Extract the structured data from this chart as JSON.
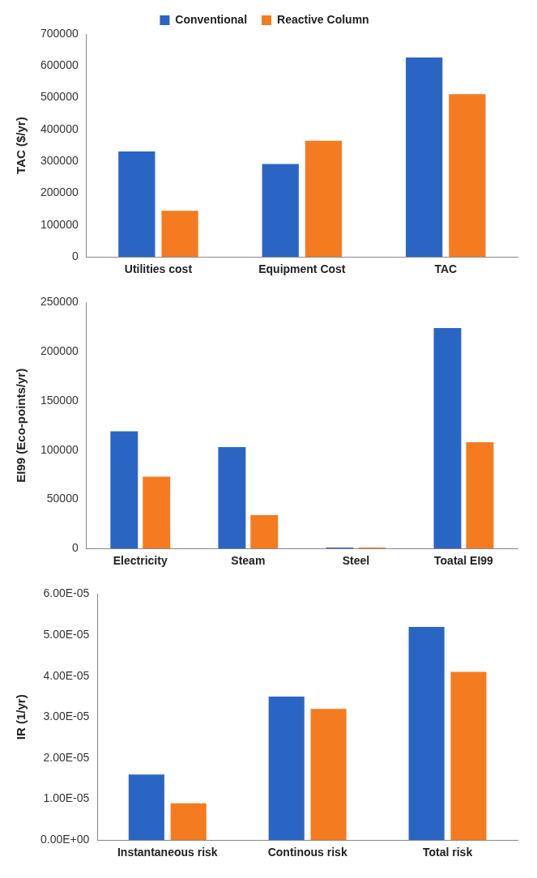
{
  "chart_data": [
    {
      "type": "bar",
      "ylabel": "TAC ($/yr)",
      "categories": [
        "Utilities cost",
        "Equipment Cost",
        "TAC"
      ],
      "series": [
        {
          "name": "Conventional",
          "color": "#2b65c4",
          "values": [
            331000,
            292000,
            626000
          ]
        },
        {
          "name": "Reactive Column",
          "color": "#f47b20",
          "values": [
            145000,
            365000,
            511000
          ]
        }
      ],
      "ylim": [
        0,
        700000
      ],
      "yticks": [
        0,
        100000,
        200000,
        300000,
        400000,
        500000,
        600000,
        700000
      ],
      "grid": false,
      "legend": "top"
    },
    {
      "type": "bar",
      "ylabel": "EI99 (Eco-points/yr)",
      "categories": [
        "Electricity",
        "Steam",
        "Steel",
        "Toatal EI99"
      ],
      "series": [
        {
          "color": "#2b65c4",
          "values": [
            119000,
            103000,
            1000,
            224000
          ]
        },
        {
          "color": "#f47b20",
          "values": [
            73000,
            34000,
            1000,
            108000
          ]
        }
      ],
      "ylim": [
        0,
        250000
      ],
      "yticks": [
        0,
        50000,
        100000,
        150000,
        200000,
        250000
      ],
      "grid": false,
      "legend": false
    },
    {
      "type": "bar",
      "ylabel": "IR (1/yr)",
      "categories": [
        "Instantaneous risk",
        "Continous risk",
        "Total risk"
      ],
      "series": [
        {
          "color": "#2b65c4",
          "values": [
            1.6e-05,
            3.5e-05,
            5.2e-05
          ]
        },
        {
          "color": "#f47b20",
          "values": [
            9e-06,
            3.2e-05,
            4.1e-05
          ]
        }
      ],
      "ylim": [
        0,
        6e-05
      ],
      "yticks": [
        {
          "value": 0,
          "label": "0.00E+00"
        },
        {
          "value": 1e-05,
          "label": "1.00E-05"
        },
        {
          "value": 2e-05,
          "label": "2.00E-05"
        },
        {
          "value": 3e-05,
          "label": "3.00E-05"
        },
        {
          "value": 4e-05,
          "label": "4.00E-05"
        },
        {
          "value": 5e-05,
          "label": "5.00E-05"
        },
        {
          "value": 6e-05,
          "label": "6.00E-05"
        }
      ],
      "grid": false,
      "legend": false
    }
  ]
}
